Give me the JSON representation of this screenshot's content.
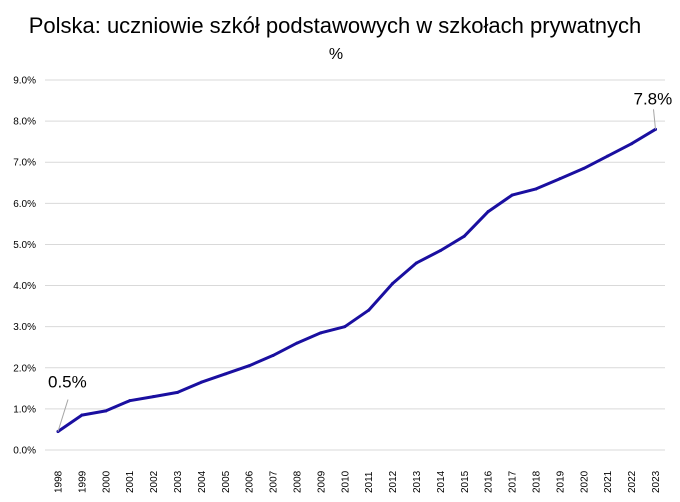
{
  "chart_data": {
    "type": "line",
    "title": "Polska: uczniowie szkół podstawowych w szkołach prywatnych",
    "subtitle": "%",
    "xlabel": "",
    "ylabel": "",
    "x": [
      "1998",
      "1999",
      "2000",
      "2001",
      "2002",
      "2003",
      "2004",
      "2005",
      "2006",
      "2007",
      "2008",
      "2009",
      "2010",
      "2011",
      "2012",
      "2013",
      "2014",
      "2015",
      "2016",
      "2017",
      "2018",
      "2019",
      "2020",
      "2021",
      "2022",
      "2023"
    ],
    "series": [
      {
        "color": "#1a0fa0",
        "values": [
          0.45,
          0.85,
          0.95,
          1.2,
          1.3,
          1.4,
          1.65,
          1.85,
          2.05,
          2.3,
          2.6,
          2.85,
          3.0,
          3.4,
          4.05,
          4.55,
          4.85,
          5.2,
          5.8,
          6.2,
          6.35,
          6.6,
          6.85,
          7.15,
          7.45,
          7.8
        ]
      }
    ],
    "ylim": [
      0,
      9
    ],
    "yticks": [
      "0.0%",
      "1.0%",
      "2.0%",
      "3.0%",
      "4.0%",
      "5.0%",
      "6.0%",
      "7.0%",
      "8.0%",
      "9.0%"
    ],
    "grid": true,
    "annotations": [
      {
        "label": "0.5%",
        "index": 0
      },
      {
        "label": "7.8%",
        "index": 25
      }
    ]
  }
}
